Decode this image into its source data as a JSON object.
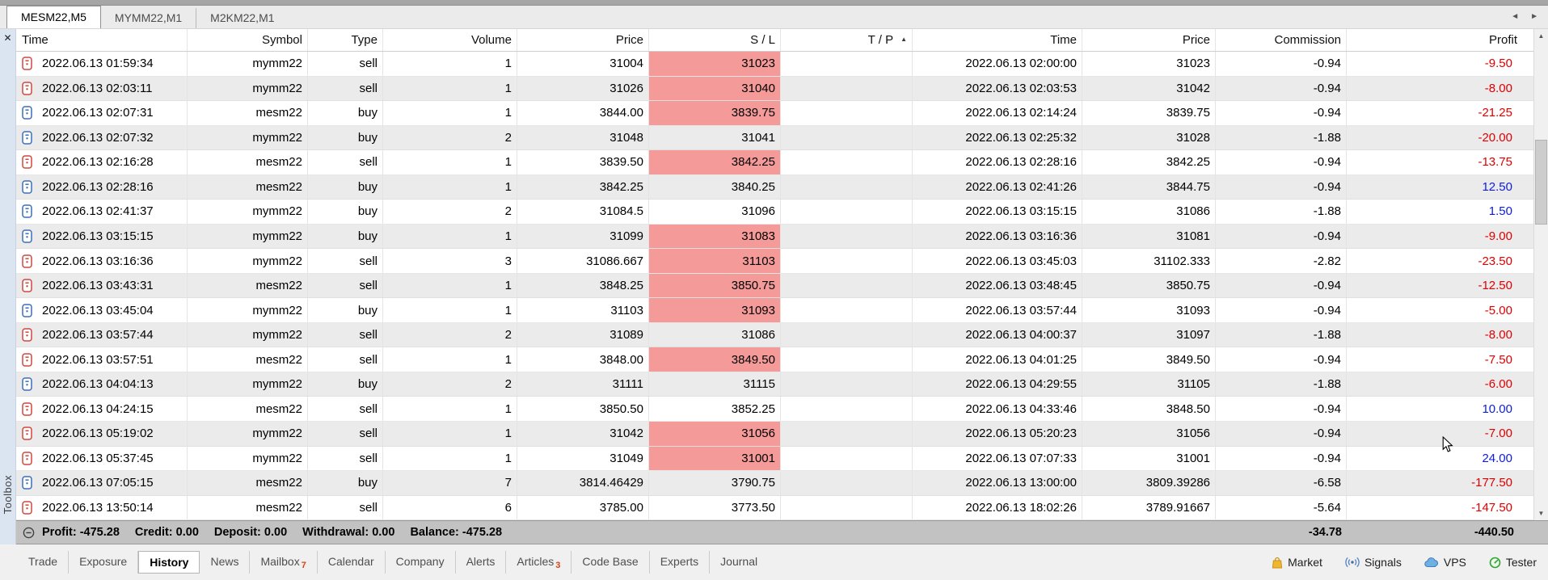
{
  "chart_tab_bar": {
    "tabs": [
      {
        "label": "MESM22,M5",
        "active": true
      },
      {
        "label": "MYMM22,M1",
        "active": false
      },
      {
        "label": "M2KM22,M1",
        "active": false
      }
    ],
    "scroll_left": "◄",
    "scroll_right": "►"
  },
  "toolbox": {
    "close_glyph": "✕",
    "vertical_label": "Toolbox"
  },
  "history_table": {
    "columns": [
      {
        "label": "Time",
        "align": "left"
      },
      {
        "label": "Symbol",
        "align": "right"
      },
      {
        "label": "Type",
        "align": "right"
      },
      {
        "label": "Volume",
        "align": "right"
      },
      {
        "label": "Price",
        "align": "right"
      },
      {
        "label": "S / L",
        "align": "right"
      },
      {
        "label": "T / P",
        "align": "right",
        "sorted": "asc"
      },
      {
        "label": "Time",
        "align": "right"
      },
      {
        "label": "Price",
        "align": "right"
      },
      {
        "label": "Commission",
        "align": "right"
      },
      {
        "label": "Profit",
        "align": "right"
      }
    ],
    "sort_indicator": "▲",
    "rows": [
      {
        "type": "sell",
        "open_time": "2022.06.13 01:59:34",
        "symbol": "mymm22",
        "volume": "1",
        "open_price": "31004",
        "sl": "31023",
        "sl_hit": true,
        "tp": "",
        "close_time": "2022.06.13 02:00:00",
        "close_price": "31023",
        "commission": "-0.94",
        "profit": "-9.50"
      },
      {
        "type": "sell",
        "open_time": "2022.06.13 02:03:11",
        "symbol": "mymm22",
        "volume": "1",
        "open_price": "31026",
        "sl": "31040",
        "sl_hit": true,
        "tp": "",
        "close_time": "2022.06.13 02:03:53",
        "close_price": "31042",
        "commission": "-0.94",
        "profit": "-8.00"
      },
      {
        "type": "buy",
        "open_time": "2022.06.13 02:07:31",
        "symbol": "mesm22",
        "volume": "1",
        "open_price": "3844.00",
        "sl": "3839.75",
        "sl_hit": true,
        "tp": "",
        "close_time": "2022.06.13 02:14:24",
        "close_price": "3839.75",
        "commission": "-0.94",
        "profit": "-21.25"
      },
      {
        "type": "buy",
        "open_time": "2022.06.13 02:07:32",
        "symbol": "mymm22",
        "volume": "2",
        "open_price": "31048",
        "sl": "31041",
        "sl_hit": false,
        "tp": "",
        "close_time": "2022.06.13 02:25:32",
        "close_price": "31028",
        "commission": "-1.88",
        "profit": "-20.00"
      },
      {
        "type": "sell",
        "open_time": "2022.06.13 02:16:28",
        "symbol": "mesm22",
        "volume": "1",
        "open_price": "3839.50",
        "sl": "3842.25",
        "sl_hit": true,
        "tp": "",
        "close_time": "2022.06.13 02:28:16",
        "close_price": "3842.25",
        "commission": "-0.94",
        "profit": "-13.75"
      },
      {
        "type": "buy",
        "open_time": "2022.06.13 02:28:16",
        "symbol": "mesm22",
        "volume": "1",
        "open_price": "3842.25",
        "sl": "3840.25",
        "sl_hit": false,
        "tp": "",
        "close_time": "2022.06.13 02:41:26",
        "close_price": "3844.75",
        "commission": "-0.94",
        "profit": "12.50"
      },
      {
        "type": "buy",
        "open_time": "2022.06.13 02:41:37",
        "symbol": "mymm22",
        "volume": "2",
        "open_price": "31084.5",
        "sl": "31096",
        "sl_hit": false,
        "tp": "",
        "close_time": "2022.06.13 03:15:15",
        "close_price": "31086",
        "commission": "-1.88",
        "profit": "1.50"
      },
      {
        "type": "buy",
        "open_time": "2022.06.13 03:15:15",
        "symbol": "mymm22",
        "volume": "1",
        "open_price": "31099",
        "sl": "31083",
        "sl_hit": true,
        "tp": "",
        "close_time": "2022.06.13 03:16:36",
        "close_price": "31081",
        "commission": "-0.94",
        "profit": "-9.00"
      },
      {
        "type": "sell",
        "open_time": "2022.06.13 03:16:36",
        "symbol": "mymm22",
        "volume": "3",
        "open_price": "31086.667",
        "sl": "31103",
        "sl_hit": true,
        "tp": "",
        "close_time": "2022.06.13 03:45:03",
        "close_price": "31102.333",
        "commission": "-2.82",
        "profit": "-23.50"
      },
      {
        "type": "sell",
        "open_time": "2022.06.13 03:43:31",
        "symbol": "mesm22",
        "volume": "1",
        "open_price": "3848.25",
        "sl": "3850.75",
        "sl_hit": true,
        "tp": "",
        "close_time": "2022.06.13 03:48:45",
        "close_price": "3850.75",
        "commission": "-0.94",
        "profit": "-12.50"
      },
      {
        "type": "buy",
        "open_time": "2022.06.13 03:45:04",
        "symbol": "mymm22",
        "volume": "1",
        "open_price": "31103",
        "sl": "31093",
        "sl_hit": true,
        "tp": "",
        "close_time": "2022.06.13 03:57:44",
        "close_price": "31093",
        "commission": "-0.94",
        "profit": "-5.00"
      },
      {
        "type": "sell",
        "open_time": "2022.06.13 03:57:44",
        "symbol": "mymm22",
        "volume": "2",
        "open_price": "31089",
        "sl": "31086",
        "sl_hit": false,
        "tp": "",
        "close_time": "2022.06.13 04:00:37",
        "close_price": "31097",
        "commission": "-1.88",
        "profit": "-8.00"
      },
      {
        "type": "sell",
        "open_time": "2022.06.13 03:57:51",
        "symbol": "mesm22",
        "volume": "1",
        "open_price": "3848.00",
        "sl": "3849.50",
        "sl_hit": true,
        "tp": "",
        "close_time": "2022.06.13 04:01:25",
        "close_price": "3849.50",
        "commission": "-0.94",
        "profit": "-7.50"
      },
      {
        "type": "buy",
        "open_time": "2022.06.13 04:04:13",
        "symbol": "mymm22",
        "volume": "2",
        "open_price": "31111",
        "sl": "31115",
        "sl_hit": false,
        "tp": "",
        "close_time": "2022.06.13 04:29:55",
        "close_price": "31105",
        "commission": "-1.88",
        "profit": "-6.00"
      },
      {
        "type": "sell",
        "open_time": "2022.06.13 04:24:15",
        "symbol": "mesm22",
        "volume": "1",
        "open_price": "3850.50",
        "sl": "3852.25",
        "sl_hit": false,
        "tp": "",
        "close_time": "2022.06.13 04:33:46",
        "close_price": "3848.50",
        "commission": "-0.94",
        "profit": "10.00"
      },
      {
        "type": "sell",
        "open_time": "2022.06.13 05:19:02",
        "symbol": "mymm22",
        "volume": "1",
        "open_price": "31042",
        "sl": "31056",
        "sl_hit": true,
        "tp": "",
        "close_time": "2022.06.13 05:20:23",
        "close_price": "31056",
        "commission": "-0.94",
        "profit": "-7.00"
      },
      {
        "type": "sell",
        "open_time": "2022.06.13 05:37:45",
        "symbol": "mymm22",
        "volume": "1",
        "open_price": "31049",
        "sl": "31001",
        "sl_hit": true,
        "tp": "",
        "close_time": "2022.06.13 07:07:33",
        "close_price": "31001",
        "commission": "-0.94",
        "profit": "24.00"
      },
      {
        "type": "buy",
        "open_time": "2022.06.13 07:05:15",
        "symbol": "mesm22",
        "volume": "7",
        "open_price": "3814.46429",
        "sl": "3790.75",
        "sl_hit": false,
        "tp": "",
        "close_time": "2022.06.13 13:00:00",
        "close_price": "3809.39286",
        "commission": "-6.58",
        "profit": "-177.50"
      },
      {
        "type": "sell",
        "open_time": "2022.06.13 13:50:14",
        "symbol": "mesm22",
        "volume": "6",
        "open_price": "3785.00",
        "sl": "3773.50",
        "sl_hit": false,
        "tp": "",
        "close_time": "2022.06.13 18:02:26",
        "close_price": "3789.91667",
        "commission": "-5.64",
        "profit": "-147.50"
      }
    ]
  },
  "summary_bar": {
    "segments": [
      {
        "label": "Profit:",
        "value": "-475.28"
      },
      {
        "label": "Credit:",
        "value": "0.00"
      },
      {
        "label": "Deposit:",
        "value": "0.00"
      },
      {
        "label": "Withdrawal:",
        "value": "0.00"
      },
      {
        "label": "Balance:",
        "value": "-475.28"
      }
    ],
    "commission_total": "-34.78",
    "profit_total": "-440.50"
  },
  "bottom_tab_bar": {
    "tabs": [
      {
        "label": "Trade"
      },
      {
        "label": "Exposure"
      },
      {
        "label": "History",
        "active": true
      },
      {
        "label": "News"
      },
      {
        "label": "Mailbox",
        "badge": "7"
      },
      {
        "label": "Calendar"
      },
      {
        "label": "Company"
      },
      {
        "label": "Alerts"
      },
      {
        "label": "Articles",
        "badge": "3"
      },
      {
        "label": "Code Base"
      },
      {
        "label": "Experts"
      },
      {
        "label": "Journal"
      }
    ],
    "status_items": [
      {
        "label": "Market",
        "icon": "market-bag-icon"
      },
      {
        "label": "Signals",
        "icon": "signals-broadcast-icon"
      },
      {
        "label": "VPS",
        "icon": "vps-cloud-icon"
      },
      {
        "label": "Tester",
        "icon": "tester-gauge-icon"
      }
    ]
  },
  "colors": {
    "loss_text": "#e00000",
    "win_text": "#0b1ed8",
    "sl_hit_bg": "#f49a99",
    "alt_row_bg": "#ebebeb",
    "buy_icon": "#3c6fbe",
    "sell_icon": "#d2463e",
    "badge": "#d84315"
  }
}
